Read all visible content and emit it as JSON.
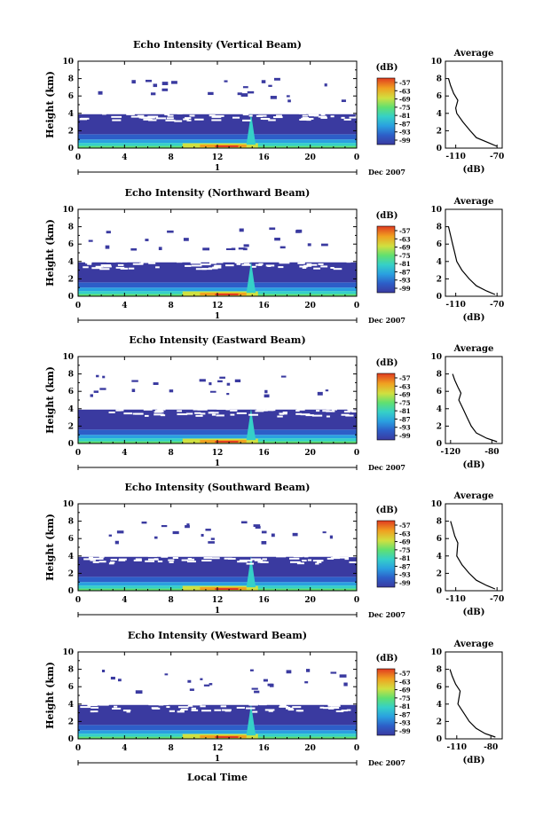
{
  "figure": {
    "xlabel": "Local Time",
    "date_label": "Dec 2007",
    "day_label": "1",
    "colors": {
      "colorscale": [
        "#3a3aa0",
        "#2d5ec8",
        "#2aa0e0",
        "#35d0c8",
        "#60e070",
        "#d0e040",
        "#f0a020",
        "#e03a20"
      ]
    }
  },
  "chart_data": [
    {
      "type": "heatmap",
      "title": "Echo Intensity (Vertical Beam)",
      "ylabel": "Height (km)",
      "x_ticks": [
        "0",
        "4",
        "8",
        "12",
        "16",
        "20",
        "0"
      ],
      "y_ticks": [
        "0",
        "2",
        "4",
        "6",
        "8",
        "10"
      ],
      "xlim": [
        0,
        24
      ],
      "ylim": [
        0,
        10
      ],
      "colorbar": {
        "label": "(dB)",
        "ticks": [
          "-57",
          "-63",
          "-69",
          "-75",
          "-81",
          "-87",
          "-93",
          "-99"
        ]
      },
      "average_profile": {
        "title": "Average",
        "xlabel": "(dB)",
        "x_ticks": [
          "-110",
          "-70"
        ],
        "y_ticks": [
          "0",
          "2",
          "4",
          "6",
          "8",
          "10"
        ],
        "xlim": [
          -120,
          -65
        ],
        "ylim": [
          0,
          10
        ],
        "x": [
          -70,
          -78,
          -90,
          -96,
          -103,
          -109,
          -110,
          -108,
          -112,
          -115,
          -117
        ],
        "y": [
          0.2,
          0.6,
          1.2,
          2.0,
          3.0,
          4.0,
          4.6,
          5.5,
          6.3,
          7.2,
          8.0
        ]
      }
    },
    {
      "type": "heatmap",
      "title": "Echo Intensity (Northward Beam)",
      "ylabel": "Height (km)",
      "x_ticks": [
        "0",
        "4",
        "8",
        "12",
        "16",
        "20",
        "0"
      ],
      "y_ticks": [
        "0",
        "2",
        "4",
        "6",
        "8",
        "10"
      ],
      "xlim": [
        0,
        24
      ],
      "ylim": [
        0,
        10
      ],
      "colorbar": {
        "label": "(dB)",
        "ticks": [
          "-57",
          "-63",
          "-69",
          "-75",
          "-81",
          "-87",
          "-93",
          "-99"
        ]
      },
      "average_profile": {
        "title": "Average",
        "xlabel": "(dB)",
        "x_ticks": [
          "-110",
          "-70"
        ],
        "y_ticks": [
          "0",
          "2",
          "4",
          "6",
          "8",
          "10"
        ],
        "xlim": [
          -120,
          -65
        ],
        "ylim": [
          0,
          10
        ],
        "x": [
          -72,
          -80,
          -90,
          -97,
          -104,
          -109,
          -111,
          -113,
          -115,
          -117
        ],
        "y": [
          0.2,
          0.6,
          1.2,
          2.0,
          3.0,
          4.0,
          5.0,
          6.0,
          7.0,
          8.0
        ]
      }
    },
    {
      "type": "heatmap",
      "title": "Echo Intensity (Eastward Beam)",
      "ylabel": "Height (km)",
      "x_ticks": [
        "0",
        "4",
        "8",
        "12",
        "16",
        "20",
        "0"
      ],
      "y_ticks": [
        "0",
        "2",
        "4",
        "6",
        "8",
        "10"
      ],
      "xlim": [
        0,
        24
      ],
      "ylim": [
        0,
        10
      ],
      "colorbar": {
        "label": "(dB)",
        "ticks": [
          "-57",
          "-63",
          "-69",
          "-75",
          "-81",
          "-87",
          "-93",
          "-99"
        ]
      },
      "average_profile": {
        "title": "Average",
        "xlabel": "(dB)",
        "x_ticks": [
          "-120",
          "-80"
        ],
        "y_ticks": [
          "0",
          "2",
          "4",
          "6",
          "8",
          "10"
        ],
        "xlim": [
          -125,
          -70
        ],
        "ylim": [
          0,
          10
        ],
        "x": [
          -75,
          -85,
          -95,
          -100,
          -104,
          -108,
          -112,
          -110,
          -113,
          -116,
          -118
        ],
        "y": [
          0.2,
          0.6,
          1.2,
          2.0,
          3.0,
          4.0,
          5.0,
          5.8,
          6.5,
          7.3,
          8.0
        ]
      }
    },
    {
      "type": "heatmap",
      "title": "Echo Intensity (Southward Beam)",
      "ylabel": "Height (km)",
      "x_ticks": [
        "0",
        "4",
        "8",
        "12",
        "16",
        "20",
        "0"
      ],
      "y_ticks": [
        "0",
        "2",
        "4",
        "6",
        "8",
        "10"
      ],
      "xlim": [
        0,
        24
      ],
      "ylim": [
        0,
        10
      ],
      "colorbar": {
        "label": "(dB)",
        "ticks": [
          "-57",
          "-63",
          "-69",
          "-75",
          "-81",
          "-87",
          "-93",
          "-99"
        ]
      },
      "average_profile": {
        "title": "Average",
        "xlabel": "(dB)",
        "x_ticks": [
          "-110",
          "-70"
        ],
        "y_ticks": [
          "0",
          "2",
          "4",
          "6",
          "8",
          "10"
        ],
        "xlim": [
          -120,
          -65
        ],
        "ylim": [
          0,
          10
        ],
        "x": [
          -72,
          -80,
          -90,
          -97,
          -104,
          -109,
          -108,
          -111,
          -113,
          -115
        ],
        "y": [
          0.2,
          0.6,
          1.2,
          2.0,
          3.0,
          4.0,
          5.5,
          6.3,
          7.2,
          8.0
        ]
      }
    },
    {
      "type": "heatmap",
      "title": "Echo Intensity (Westward Beam)",
      "ylabel": "Height (km)",
      "x_ticks": [
        "0",
        "4",
        "8",
        "12",
        "16",
        "20",
        "0"
      ],
      "y_ticks": [
        "0",
        "2",
        "4",
        "6",
        "8",
        "10"
      ],
      "xlim": [
        0,
        24
      ],
      "ylim": [
        0,
        10
      ],
      "colorbar": {
        "label": "(dB)",
        "ticks": [
          "-57",
          "-63",
          "-69",
          "-75",
          "-81",
          "-87",
          "-93",
          "-99"
        ]
      },
      "average_profile": {
        "title": "Average",
        "xlabel": "(dB)",
        "x_ticks": [
          "-110",
          "-80"
        ],
        "y_ticks": [
          "0",
          "2",
          "4",
          "6",
          "8",
          "10"
        ],
        "xlim": [
          -120,
          -70
        ],
        "ylim": [
          0,
          10
        ],
        "x": [
          -76,
          -85,
          -93,
          -99,
          -104,
          -109,
          -107,
          -111,
          -114,
          -116
        ],
        "y": [
          0.2,
          0.6,
          1.2,
          2.0,
          3.0,
          4.0,
          5.5,
          6.3,
          7.2,
          8.0
        ]
      }
    }
  ]
}
